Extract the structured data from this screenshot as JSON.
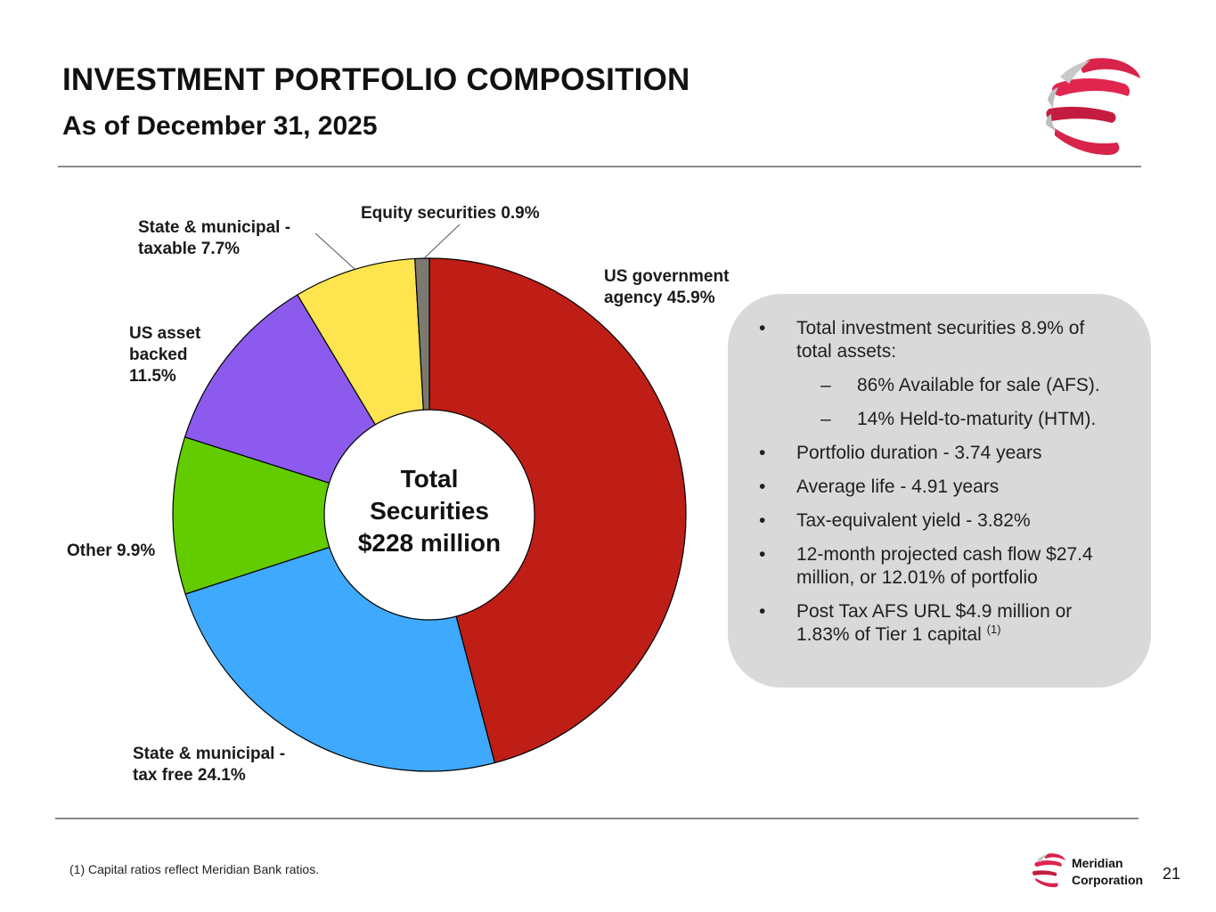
{
  "header": {
    "title": "INVESTMENT PORTFOLIO COMPOSITION",
    "subtitle": "As of December 31, 2025"
  },
  "chart_data": {
    "type": "pie",
    "variant": "donut",
    "center_label": [
      "Total",
      "Securities",
      "$228 million"
    ],
    "slices": [
      {
        "name": "US government agency",
        "value": 45.9,
        "color": "#be1e16",
        "label_lines": [
          "US government",
          "agency 45.9%"
        ]
      },
      {
        "name": "State & municipal - tax free",
        "value": 24.1,
        "color": "#3fa9fd",
        "label_lines": [
          "State & municipal -",
          "tax free 24.1%"
        ]
      },
      {
        "name": "Other",
        "value": 9.9,
        "color": "#63cc00",
        "label_lines": [
          "Other 9.9%"
        ]
      },
      {
        "name": "US asset backed",
        "value": 11.5,
        "color": "#8c5aec",
        "label_lines": [
          "US asset",
          "backed",
          "11.5%"
        ]
      },
      {
        "name": "State & municipal - taxable",
        "value": 7.7,
        "color": "#fee44e",
        "label_lines": [
          "State & municipal -",
          "taxable 7.7%"
        ]
      },
      {
        "name": "Equity securities",
        "value": 0.9,
        "color": "#7a7a70",
        "label_lines": [
          "Equity securities 0.9%"
        ]
      }
    ]
  },
  "info_box": {
    "bullets": [
      {
        "level": 1,
        "text": "Total investment securities 8.9% of total assets:"
      },
      {
        "level": 2,
        "text": "86% Available for sale (AFS)."
      },
      {
        "level": 2,
        "text": "14% Held-to-maturity (HTM)."
      },
      {
        "level": 1,
        "text": "Portfolio duration - 3.74 years"
      },
      {
        "level": 1,
        "text": "Average life - 4.91 years"
      },
      {
        "level": 1,
        "text": "Tax-equivalent yield - 3.82%"
      },
      {
        "level": 1,
        "text": "12-month projected cash flow $27.4 million, or 12.01% of portfolio"
      },
      {
        "level": 1,
        "text": "Post Tax AFS URL $4.9 million or 1.83% of Tier 1 capital",
        "superscript": "(1)"
      }
    ]
  },
  "footer": {
    "footnote": "(1) Capital ratios reflect Meridian Bank ratios.",
    "brand_line1": "Meridian",
    "brand_line2": "Corporation",
    "page_number": "21"
  },
  "colors": {
    "brand_red": "#d8234a",
    "brand_grey": "#b5b5b5",
    "panel_bg": "#d9d9d9"
  }
}
